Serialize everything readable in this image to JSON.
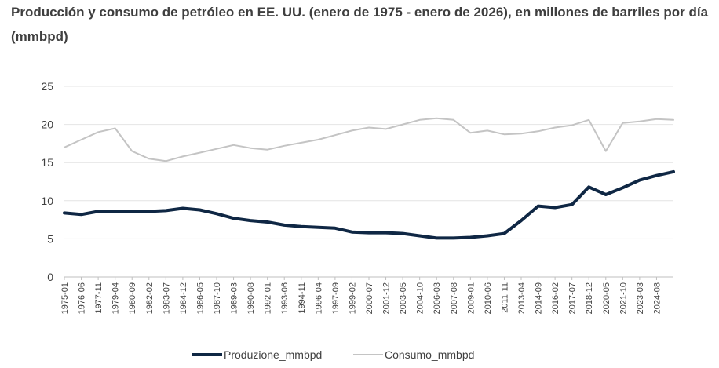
{
  "chart_data": {
    "type": "line",
    "title": "Producción y consumo de petróleo en EE. UU. (enero de 1975 - enero de 2026), en millones de barriles por día (mmbpd)",
    "xlabel": "",
    "ylabel": "",
    "ylim": [
      0,
      25
    ],
    "yticks": [
      0,
      5,
      10,
      15,
      20,
      25
    ],
    "grid": "horizontal",
    "legend_position": "bottom",
    "x_tick_labels": [
      "1975-01",
      "1976-06",
      "1977-11",
      "1979-04",
      "1980-09",
      "1982-02",
      "1983-07",
      "1984-12",
      "1986-05",
      "1987-10",
      "1989-03",
      "1990-08",
      "1992-01",
      "1993-06",
      "1994-11",
      "1996-04",
      "1997-09",
      "1999-02",
      "2000-07",
      "2001-12",
      "2003-05",
      "2004-10",
      "2006-03",
      "2007-08",
      "2009-01",
      "2010-06",
      "2011-11",
      "2013-04",
      "2014-09",
      "2016-02",
      "2017-07",
      "2018-12",
      "2020-05",
      "2021-10",
      "2023-03",
      "2024-08"
    ],
    "x": [
      "1975-01",
      "1976-06",
      "1977-11",
      "1979-04",
      "1980-09",
      "1982-02",
      "1983-07",
      "1984-12",
      "1986-05",
      "1987-10",
      "1989-03",
      "1990-08",
      "1992-01",
      "1993-06",
      "1994-11",
      "1996-04",
      "1997-09",
      "1999-02",
      "2000-07",
      "2001-12",
      "2003-05",
      "2004-10",
      "2006-03",
      "2007-08",
      "2009-01",
      "2010-06",
      "2011-11",
      "2013-04",
      "2014-09",
      "2016-02",
      "2017-07",
      "2018-12",
      "2020-05",
      "2021-10",
      "2023-03",
      "2024-08",
      "2026-01"
    ],
    "series": [
      {
        "name": "Produzione_mmbpd",
        "color": "#0f2744",
        "values": [
          8.4,
          8.2,
          8.6,
          8.6,
          8.6,
          8.6,
          8.7,
          9.0,
          8.8,
          8.3,
          7.7,
          7.4,
          7.2,
          6.8,
          6.6,
          6.5,
          6.4,
          5.9,
          5.8,
          5.8,
          5.7,
          5.4,
          5.1,
          5.1,
          5.2,
          5.4,
          5.7,
          7.4,
          9.3,
          9.1,
          9.5,
          11.8,
          10.8,
          11.7,
          12.7,
          13.3,
          13.8
        ]
      },
      {
        "name": "Consumo_mmbpd",
        "color": "#c4c4c4",
        "values": [
          17.0,
          18.0,
          19.0,
          19.5,
          16.5,
          15.5,
          15.2,
          15.8,
          16.3,
          16.8,
          17.3,
          16.9,
          16.7,
          17.2,
          17.6,
          18.0,
          18.6,
          19.2,
          19.6,
          19.4,
          20.0,
          20.6,
          20.8,
          20.6,
          18.9,
          19.2,
          18.7,
          18.8,
          19.1,
          19.6,
          19.9,
          20.6,
          16.5,
          20.2,
          20.4,
          20.7,
          20.6
        ]
      }
    ]
  }
}
